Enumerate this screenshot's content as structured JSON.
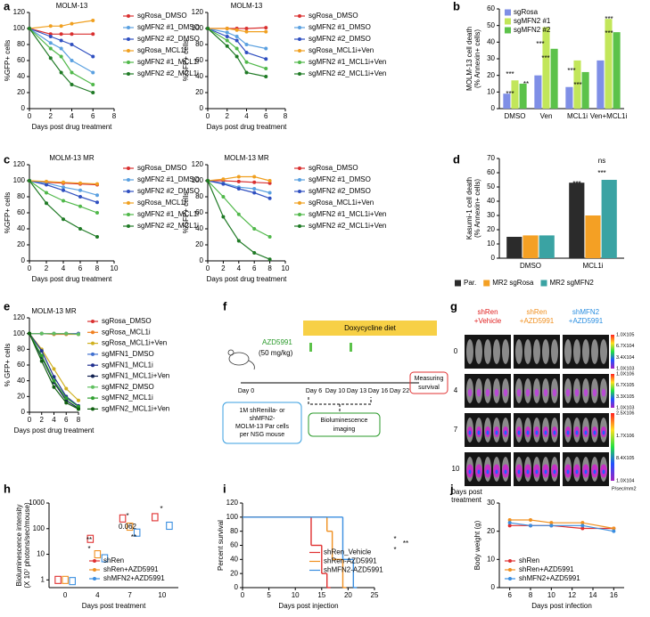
{
  "panel_labels": [
    "a",
    "b",
    "c",
    "d",
    "e",
    "f",
    "g",
    "h",
    "i",
    "j"
  ],
  "chart_data": [
    {
      "type": "line",
      "title": "MOLM-13",
      "ylabel": "%GFP+ cells",
      "xlabel": "Days post drug treatment",
      "x": [
        0,
        2,
        3,
        4,
        6
      ],
      "xlim": [
        0,
        8
      ],
      "xticks": [
        0,
        2,
        4,
        6,
        8
      ],
      "ylim": [
        0,
        120
      ],
      "yticks": [
        0,
        20,
        40,
        60,
        80,
        100,
        120
      ],
      "legend": "right",
      "series": [
        {
          "name": "sgRosa_DMSO",
          "color": "#d93030",
          "values": [
            100,
            93,
            93,
            93,
            93
          ]
        },
        {
          "name": "sgMFN2 #1_DMSO",
          "color": "#5aa0e0",
          "values": [
            100,
            82,
            75,
            60,
            45
          ]
        },
        {
          "name": "sgMFN2 #2_DMSO",
          "color": "#2f4fc0",
          "values": [
            100,
            90,
            85,
            80,
            65
          ]
        },
        {
          "name": "sgRosa_MCL1i",
          "color": "#f0a020",
          "values": [
            100,
            103,
            103,
            106,
            110
          ]
        },
        {
          "name": "sgMFN2 #1_MCL1i",
          "color": "#50b84a",
          "values": [
            100,
            75,
            65,
            45,
            30
          ]
        },
        {
          "name": "sgMFN2 #2_MCL1i",
          "color": "#1f7a25",
          "values": [
            100,
            63,
            45,
            30,
            20
          ]
        }
      ]
    },
    {
      "type": "line",
      "title": "MOLM-13",
      "ylabel": "%GFP+ cells",
      "xlabel": "Days post drug treatment",
      "x": [
        0,
        2,
        3,
        4,
        6
      ],
      "xlim": [
        0,
        8
      ],
      "xticks": [
        0,
        2,
        4,
        6,
        8
      ],
      "ylim": [
        0,
        120
      ],
      "yticks": [
        0,
        20,
        40,
        60,
        80,
        100,
        120
      ],
      "legend": "right",
      "series": [
        {
          "name": "sgRosa_DMSO",
          "color": "#d93030",
          "values": [
            100,
            100,
            100,
            100,
            101
          ]
        },
        {
          "name": "sgMFN2 #1_DMSO",
          "color": "#5aa0e0",
          "values": [
            100,
            95,
            90,
            80,
            75
          ]
        },
        {
          "name": "sgMFN2 #2_DMSO",
          "color": "#2f4fc0",
          "values": [
            100,
            90,
            85,
            70,
            62
          ]
        },
        {
          "name": "sgRosa_MCL1i+Ven",
          "color": "#f0a020",
          "values": [
            100,
            100,
            98,
            96,
            96
          ]
        },
        {
          "name": "sgMFN2 #1_MCL1i+Ven",
          "color": "#50b84a",
          "values": [
            100,
            85,
            75,
            58,
            50
          ]
        },
        {
          "name": "sgMFN2 #2_MCL1i+Ven",
          "color": "#1f7a25",
          "values": [
            100,
            78,
            65,
            45,
            40
          ]
        }
      ]
    },
    {
      "type": "bar",
      "ylabel": [
        "MOLM-13 cell death",
        "(% Annexin+ cells)"
      ],
      "categories": [
        "DMSO",
        "Ven",
        "MCL1i",
        "Ven+MCL1i"
      ],
      "ylim": [
        0,
        60
      ],
      "yticks": [
        0,
        10,
        20,
        30,
        40,
        50,
        60
      ],
      "legend": "upper left",
      "series": [
        {
          "name": "sgRosa",
          "color": "#7f8fe6",
          "values": [
            9,
            20,
            13,
            29
          ]
        },
        {
          "name": "sgMFN2 #1",
          "color": "#c2e65a",
          "values": [
            17,
            49,
            29,
            54
          ]
        },
        {
          "name": "sgMFN2 #2",
          "color": "#5cc24a",
          "values": [
            15,
            36,
            22,
            46
          ]
        }
      ],
      "annotations": [
        "***",
        "**",
        "***",
        "***",
        "***",
        "***",
        "***",
        "***",
        "***"
      ]
    },
    {
      "type": "line",
      "title": "MOLM-13 MR",
      "ylabel": "%GFP+ cells",
      "xlabel": "Days post drug treatment",
      "x": [
        0,
        2,
        4,
        6,
        8
      ],
      "xlim": [
        0,
        10
      ],
      "xticks": [
        0,
        2,
        4,
        6,
        8,
        10
      ],
      "ylim": [
        0,
        120
      ],
      "yticks": [
        0,
        20,
        40,
        60,
        80,
        100,
        120
      ],
      "legend": "right",
      "series": [
        {
          "name": "sgRosa_DMSO",
          "color": "#d93030",
          "values": [
            100,
            98,
            97,
            96,
            95
          ]
        },
        {
          "name": "sgMFN2 #1_DMSO",
          "color": "#5aa0e0",
          "values": [
            100,
            97,
            92,
            88,
            82
          ]
        },
        {
          "name": "sgMFN2 #2_DMSO",
          "color": "#2f4fc0",
          "values": [
            100,
            95,
            88,
            80,
            73
          ]
        },
        {
          "name": "sgRosa_MCL1i",
          "color": "#f0a020",
          "values": [
            100,
            99,
            98,
            97,
            96
          ]
        },
        {
          "name": "sgMFN2 #1_MCL1i",
          "color": "#50b84a",
          "values": [
            100,
            85,
            75,
            68,
            60
          ]
        },
        {
          "name": "sgMFN2 #2_MCL1i",
          "color": "#1f7a25",
          "values": [
            100,
            72,
            52,
            40,
            30
          ]
        }
      ]
    },
    {
      "type": "line",
      "title": "MOLM-13 MR",
      "ylabel": "%GFP+ cells",
      "xlabel": "Days post drug treatment",
      "x": [
        0,
        2,
        4,
        6,
        8
      ],
      "xlim": [
        0,
        10
      ],
      "xticks": [
        0,
        2,
        4,
        6,
        8,
        10
      ],
      "ylim": [
        0,
        120
      ],
      "yticks": [
        0,
        20,
        40,
        60,
        80,
        100,
        120
      ],
      "legend": "right",
      "series": [
        {
          "name": "sgRosa_DMSO",
          "color": "#d93030",
          "values": [
            100,
            100,
            99,
            98,
            97
          ]
        },
        {
          "name": "sgMFN2 #1_DMSO",
          "color": "#5aa0e0",
          "values": [
            100,
            97,
            92,
            90,
            85
          ]
        },
        {
          "name": "sgMFN2 #2_DMSO",
          "color": "#2f4fc0",
          "values": [
            100,
            96,
            90,
            85,
            78
          ]
        },
        {
          "name": "sgRosa_MCL1i+Ven",
          "color": "#f0a020",
          "values": [
            100,
            102,
            105,
            105,
            100
          ]
        },
        {
          "name": "sgMFN2 #1_MCL1i+Ven",
          "color": "#50b84a",
          "values": [
            100,
            80,
            58,
            40,
            30
          ]
        },
        {
          "name": "sgMFN2 #2_MCL1i+Ven",
          "color": "#1f7a25",
          "values": [
            100,
            55,
            25,
            10,
            2
          ]
        }
      ]
    },
    {
      "type": "bar",
      "ylabel": [
        "Kasumi-1 cell death",
        "(% Annexin+ cells)"
      ],
      "categories": [
        "DMSO",
        "MCL1i"
      ],
      "ylim": [
        0,
        70
      ],
      "yticks": [
        0,
        10,
        20,
        30,
        40,
        50,
        60,
        70
      ],
      "legend": "bottom",
      "series": [
        {
          "name": "Par.",
          "color": "#2b2b2b",
          "values": [
            15,
            53
          ]
        },
        {
          "name": "MR2 sgRosa",
          "color": "#f4a024",
          "values": [
            16,
            30
          ]
        },
        {
          "name": "MR2 sgMFN2",
          "color": "#3aa3a3",
          "values": [
            16,
            55
          ]
        }
      ],
      "annotations": [
        "ns",
        "***",
        "***"
      ]
    },
    {
      "type": "line",
      "title": "MOLM-13 MR",
      "ylabel": "% GFP+ cells",
      "xlabel": "Days post drug treatment",
      "x": [
        0,
        2,
        4,
        6,
        8
      ],
      "xlim": [
        0,
        8
      ],
      "xticks": [
        0,
        2,
        4,
        6,
        8
      ],
      "ylim": [
        0,
        120
      ],
      "yticks": [
        0,
        20,
        40,
        60,
        80,
        100,
        120
      ],
      "legend": "right",
      "series": [
        {
          "name": "sgRosa_DMSO",
          "color": "#d93030",
          "values": [
            100,
            100,
            100,
            100,
            100
          ]
        },
        {
          "name": "sgRosa_MCL1i",
          "color": "#f08020",
          "values": [
            100,
            100,
            99,
            99,
            99
          ]
        },
        {
          "name": "sgRosa_MCL1i+Ven",
          "color": "#d0b020",
          "values": [
            100,
            80,
            55,
            30,
            15
          ]
        },
        {
          "name": "sgMFN1_DMSO",
          "color": "#4070d0",
          "values": [
            100,
            100,
            100,
            100,
            100
          ]
        },
        {
          "name": "sgMFN1_MCL1i",
          "color": "#203090",
          "values": [
            100,
            78,
            45,
            20,
            8
          ]
        },
        {
          "name": "sgMFN1_MCL1i+Ven",
          "color": "#102050",
          "values": [
            100,
            70,
            38,
            15,
            5
          ]
        },
        {
          "name": "sgMFN2_DMSO",
          "color": "#60c060",
          "values": [
            100,
            100,
            100,
            100,
            99
          ]
        },
        {
          "name": "sgMFN2_MCL1i",
          "color": "#30a030",
          "values": [
            100,
            72,
            40,
            18,
            7
          ]
        },
        {
          "name": "sgMFN2_MCL1i+Ven",
          "color": "#106010",
          "values": [
            100,
            65,
            32,
            12,
            4
          ]
        }
      ]
    },
    {
      "type": "box",
      "ylabel": [
        "Bioluminescence intensity",
        "(X 10⁷ photons/sec/mouse)"
      ],
      "xlabel": "Days post treatment",
      "categories": [
        "0",
        "4",
        "7",
        "10"
      ],
      "log_y": true,
      "ylim": [
        0.5,
        1000
      ],
      "yticks": [
        1,
        10,
        100,
        1000
      ],
      "legend": "lower right",
      "series": [
        {
          "name": "shRen",
          "color": "#e03030",
          "values": [
            1,
            40,
            250,
            280
          ]
        },
        {
          "name": "shRen+AZD5991",
          "color": "#f09020",
          "values": [
            1,
            10,
            120,
            null
          ]
        },
        {
          "name": "shMFN2+AZD5991",
          "color": "#3a8ee0",
          "values": [
            0.9,
            7,
            70,
            130
          ]
        }
      ],
      "annotations": [
        "**",
        "*",
        "*",
        "0.062",
        "**",
        "*"
      ]
    },
    {
      "type": "step",
      "ylabel": "Percent survival",
      "xlabel": "Days post injection",
      "xlim": [
        0,
        25
      ],
      "xticks": [
        0,
        5,
        10,
        15,
        20,
        25
      ],
      "ylim": [
        0,
        120
      ],
      "yticks": [
        0,
        20,
        40,
        60,
        80,
        100,
        120
      ],
      "legend": "center right",
      "series": [
        {
          "name": "shRen_Vehicle",
          "color": "#e03030",
          "x": [
            0,
            13,
            15,
            16
          ],
          "values": [
            100,
            60,
            20,
            0
          ]
        },
        {
          "name": "shRen-AZD5991",
          "color": "#f09020",
          "x": [
            0,
            16,
            17,
            19
          ],
          "values": [
            100,
            80,
            40,
            0
          ]
        },
        {
          "name": "shMFN2-AZD5991",
          "color": "#3a8ee0",
          "x": [
            0,
            19,
            21
          ],
          "values": [
            100,
            40,
            0
          ]
        }
      ],
      "annotations": [
        "*",
        "*",
        "**"
      ]
    },
    {
      "type": "line",
      "ylabel": "Body weight (g)",
      "xlabel": "Days post infection",
      "x": [
        6,
        8,
        10,
        13,
        16
      ],
      "xlim": [
        5,
        17
      ],
      "xticks": [
        6,
        8,
        10,
        12,
        14,
        16
      ],
      "ylim": [
        0,
        30
      ],
      "yticks": [
        0,
        10,
        20,
        30
      ],
      "legend": "lower left",
      "series": [
        {
          "name": "shRen",
          "color": "#e03030",
          "values": [
            22,
            22,
            22,
            21,
            21
          ]
        },
        {
          "name": "shRen+AZD5991",
          "color": "#f09020",
          "values": [
            24,
            24,
            23,
            23,
            21
          ]
        },
        {
          "name": "shMFN2+AZD5991",
          "color": "#3a8ee0",
          "values": [
            23,
            22,
            22,
            22,
            20
          ]
        }
      ]
    }
  ],
  "diagram": {
    "diet": "Doxycycline diet",
    "drug": "AZD5991",
    "dose": "(50 mg/kg)",
    "days": [
      "Day 0",
      "Day 6",
      "Day 10",
      "Day 13",
      "Day 16",
      "Day 22"
    ],
    "endpoint": [
      "Measuring",
      "survival"
    ],
    "cells": [
      "1M shRenilla- or",
      "shMFN2-",
      "MOLM-13 Par cells",
      "per NSG mouse"
    ],
    "imaging": [
      "Bioluminescence",
      "imaging"
    ]
  },
  "imaging": {
    "groups": [
      [
        "shRen",
        "+Vehicle"
      ],
      [
        "shRen",
        "+AZD5991"
      ],
      [
        "shMFN2",
        "+AZD5991"
      ]
    ],
    "colors": [
      "#e02020",
      "#f09020",
      "#2a8ee0"
    ],
    "days": [
      "0",
      "4",
      "7",
      "10"
    ],
    "days_label": [
      "Days post",
      "treatment"
    ],
    "scales": [
      [
        "1.0X105",
        "6.7X104",
        "3.4X104",
        "1.0X103"
      ],
      [
        "1.0X106",
        "6.7X105",
        "3.3X105",
        "1.0X103"
      ],
      [
        "2.5X106",
        "1.7X106",
        "8.4X105",
        "1.0X104"
      ]
    ],
    "unit": "P/sec/mm2"
  }
}
